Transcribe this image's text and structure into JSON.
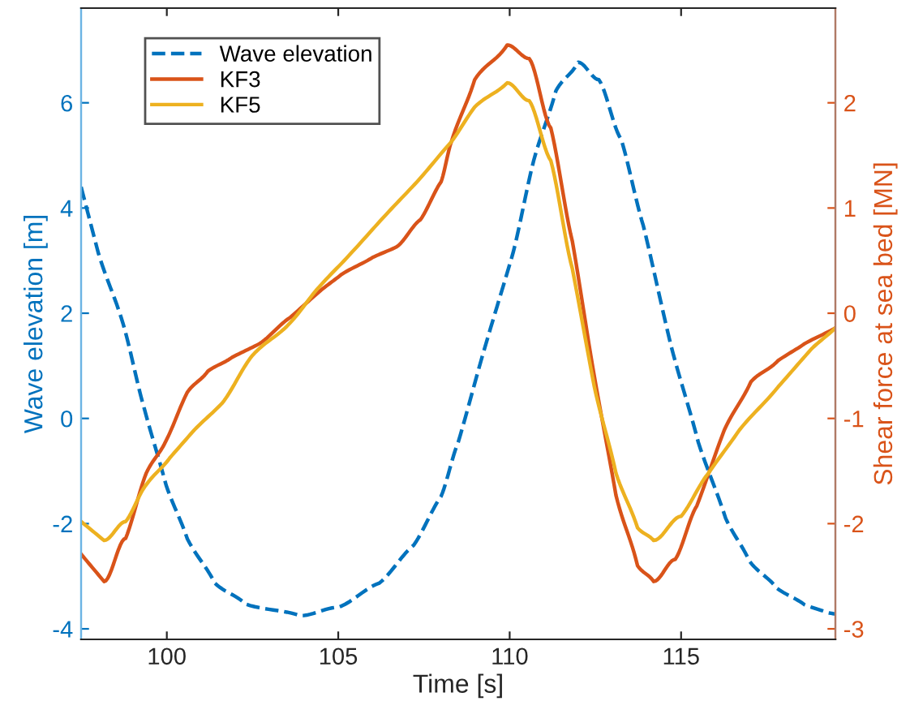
{
  "chart_data": {
    "type": "line",
    "xlabel": "Time [s]",
    "ylabel": "Wave elevation [m]",
    "y2label": "Shear force at sea bed [MN]",
    "xlim": [
      97.5,
      119.5
    ],
    "xticks": [
      100,
      105,
      110,
      115
    ],
    "ylim": [
      -4.2,
      7.8
    ],
    "yticks": [
      -4,
      -2,
      0,
      2,
      4,
      6
    ],
    "y2lim": [
      -3.1,
      2.9
    ],
    "y2ticks": [
      -3,
      -2,
      -1,
      0,
      1,
      2
    ],
    "grid": false,
    "legend": "top left",
    "marker": "none",
    "series": [
      {
        "name": "Wave elevation",
        "color": "#0072bd",
        "line_style": "dashed",
        "axis": "y",
        "x": [
          97.5,
          98.0,
          98.72,
          99.35,
          99.98,
          100.6,
          101.4,
          102.3,
          103.9,
          105.0,
          106.2,
          107.2,
          108.0,
          108.5,
          109.3,
          110.1,
          110.7,
          111.35,
          112.0,
          112.6,
          113.25,
          113.9,
          114.7,
          115.5,
          116.3,
          117.0,
          117.8,
          118.6,
          119.26,
          119.5
        ],
        "values": [
          4.4,
          3.15,
          1.81,
          0.17,
          -1.27,
          -2.29,
          -3.13,
          -3.53,
          -3.75,
          -3.59,
          -3.13,
          -2.41,
          -1.48,
          -0.45,
          1.4,
          3.15,
          4.9,
          6.23,
          6.77,
          6.44,
          5.31,
          3.66,
          1.4,
          -0.45,
          -1.9,
          -2.72,
          -3.23,
          -3.54,
          -3.69,
          -3.72
        ]
      },
      {
        "name": "KF3",
        "color": "#d95319",
        "line_style": "solid",
        "axis": "y2",
        "x": [
          97.5,
          98.17,
          98.8,
          99.4,
          99.98,
          100.6,
          101.2,
          101.9,
          102.7,
          103.6,
          104.5,
          105.1,
          106.0,
          106.7,
          107.4,
          108.0,
          108.3,
          108.98,
          109.93,
          110.57,
          111.2,
          111.83,
          112.47,
          113.1,
          113.73,
          114.2,
          114.83,
          115.46,
          116.26,
          117.04,
          117.83,
          118.6,
          119.5
        ],
        "values": [
          -2.29,
          -2.55,
          -2.14,
          -1.52,
          -1.21,
          -0.75,
          -0.55,
          -0.42,
          -0.29,
          -0.04,
          0.22,
          0.37,
          0.53,
          0.63,
          0.89,
          1.25,
          1.63,
          2.22,
          2.55,
          2.42,
          1.76,
          0.68,
          -0.6,
          -1.73,
          -2.4,
          -2.55,
          -2.34,
          -1.83,
          -1.11,
          -0.65,
          -0.45,
          -0.29,
          -0.14
        ]
      },
      {
        "name": "KF5",
        "color": "#edb120",
        "line_style": "solid",
        "axis": "y2",
        "x": [
          97.5,
          98.17,
          98.8,
          99.4,
          100.1,
          100.8,
          101.6,
          102.5,
          103.6,
          104.5,
          105.4,
          106.4,
          107.3,
          108.3,
          108.98,
          109.93,
          110.57,
          111.2,
          111.83,
          112.47,
          113.1,
          113.73,
          114.2,
          115.0,
          115.8,
          116.7,
          117.83,
          118.8,
          119.5
        ],
        "values": [
          -1.98,
          -2.16,
          -1.98,
          -1.63,
          -1.37,
          -1.11,
          -0.86,
          -0.4,
          -0.09,
          0.27,
          0.58,
          0.94,
          1.25,
          1.63,
          1.96,
          2.19,
          2.02,
          1.45,
          0.42,
          -0.7,
          -1.52,
          -2.04,
          -2.16,
          -1.93,
          -1.52,
          -1.11,
          -0.7,
          -0.34,
          -0.14
        ]
      }
    ]
  }
}
